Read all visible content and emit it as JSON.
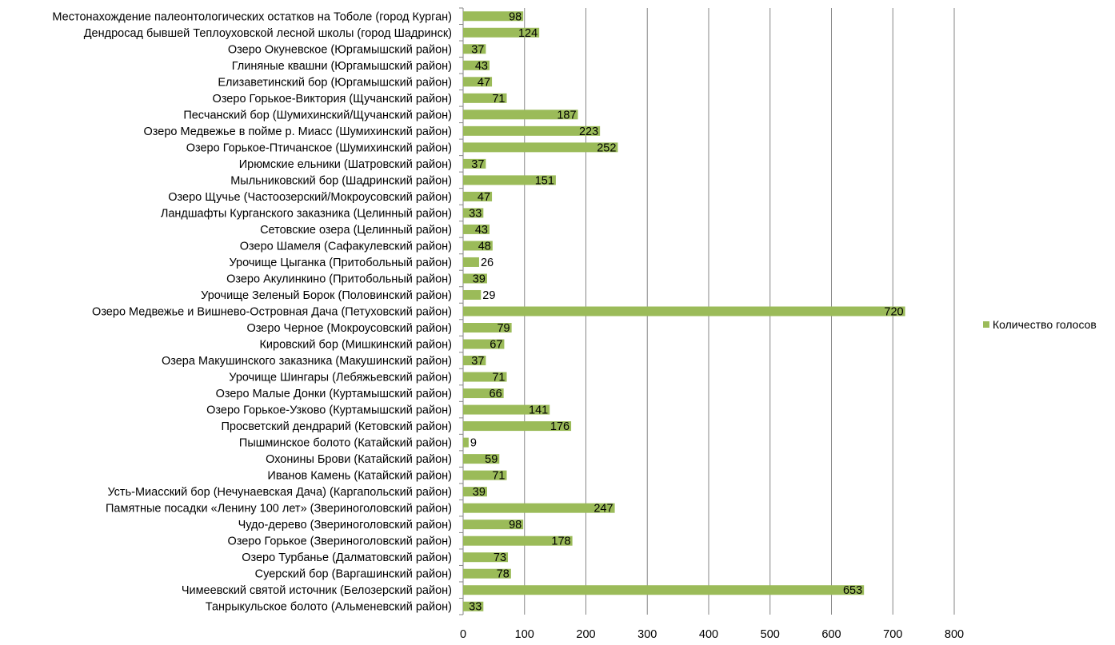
{
  "chart_data": {
    "type": "bar",
    "orientation": "horizontal",
    "title": "",
    "xlabel": "",
    "ylabel": "",
    "xlim": [
      0,
      800
    ],
    "x_ticks": [
      0,
      100,
      200,
      300,
      400,
      500,
      600,
      700,
      800
    ],
    "grid": "vertical",
    "legend_position": "right",
    "bar_color": "#9bbb59",
    "series": [
      {
        "name": "Количество голосов",
        "values": [
          98,
          124,
          37,
          43,
          47,
          71,
          187,
          223,
          252,
          37,
          151,
          47,
          33,
          43,
          48,
          26,
          39,
          29,
          720,
          79,
          67,
          37,
          71,
          66,
          141,
          176,
          9,
          59,
          71,
          39,
          247,
          98,
          178,
          73,
          78,
          653,
          33
        ]
      }
    ],
    "categories": [
      "Местонахождение палеонтологических остатков на Тоболе (город Курган)",
      "Дендросад бывшей Теплоуховской лесной школы (город Шадринск)",
      "Озеро Окуневское (Юргамышский район)",
      "Глиняные квашни (Юргамышский район)",
      "Елизаветинский бор (Юргамышский район)",
      "Озеро Горькое-Виктория (Щучанский район)",
      "Песчанский бор (Шумихинский/Щучанский район)",
      "Озеро Медвежье  в пойме р. Миасс (Шумихинский район)",
      "Озеро Горькое-Птичанское (Шумихинский район)",
      "Ирюмские ельники (Шатровский район)",
      "Мыльниковский бор (Шадринский район)",
      "Озеро Щучье (Частоозерский/Мокроусовский район)",
      "Ландшафты Курганского заказника (Целинный район)",
      "Сетовские озера (Целинный район)",
      "Озеро Шамеля (Сафакулевский район)",
      "Урочище Цыганка (Притобольный район)",
      "Озеро Акулинкино (Притобольный район)",
      "Урочище Зеленый Борок (Половинский район)",
      "Озеро Медвежье и Вишнево-Островная Дача (Петуховский район)",
      "Озеро Черное (Мокроусовский район)",
      "Кировский бор (Мишкинский район)",
      "Озера Макушинского заказника (Макушинский район)",
      "Урочище Шингары (Лебяжьевский район)",
      "Озеро Малые Донки (Куртамышский район)",
      "Озеро Горькое-Узково (Куртамышский район)",
      "Просветский дендрарий (Кетовский район)",
      "Пышминское болото (Катайский район)",
      "Охонины Брови (Катайский район)",
      "Иванов Камень (Катайский район)",
      "Усть-Миасский бор (Нечунаевская Дача) (Каргапольский район)",
      "Памятные посадки «Ленину 100 лет» (Звериноголовский район)",
      "Чудо-дерево (Звериноголовский район)",
      "Озеро Горькое (Звериноголовский район)",
      "Озеро Турбанье (Далматовский район)",
      "Суерский бор (Варгашинский район)",
      "Чимеевский святой источник (Белозерский район)",
      "Танрыкульское болото (Альменевский район)"
    ]
  }
}
